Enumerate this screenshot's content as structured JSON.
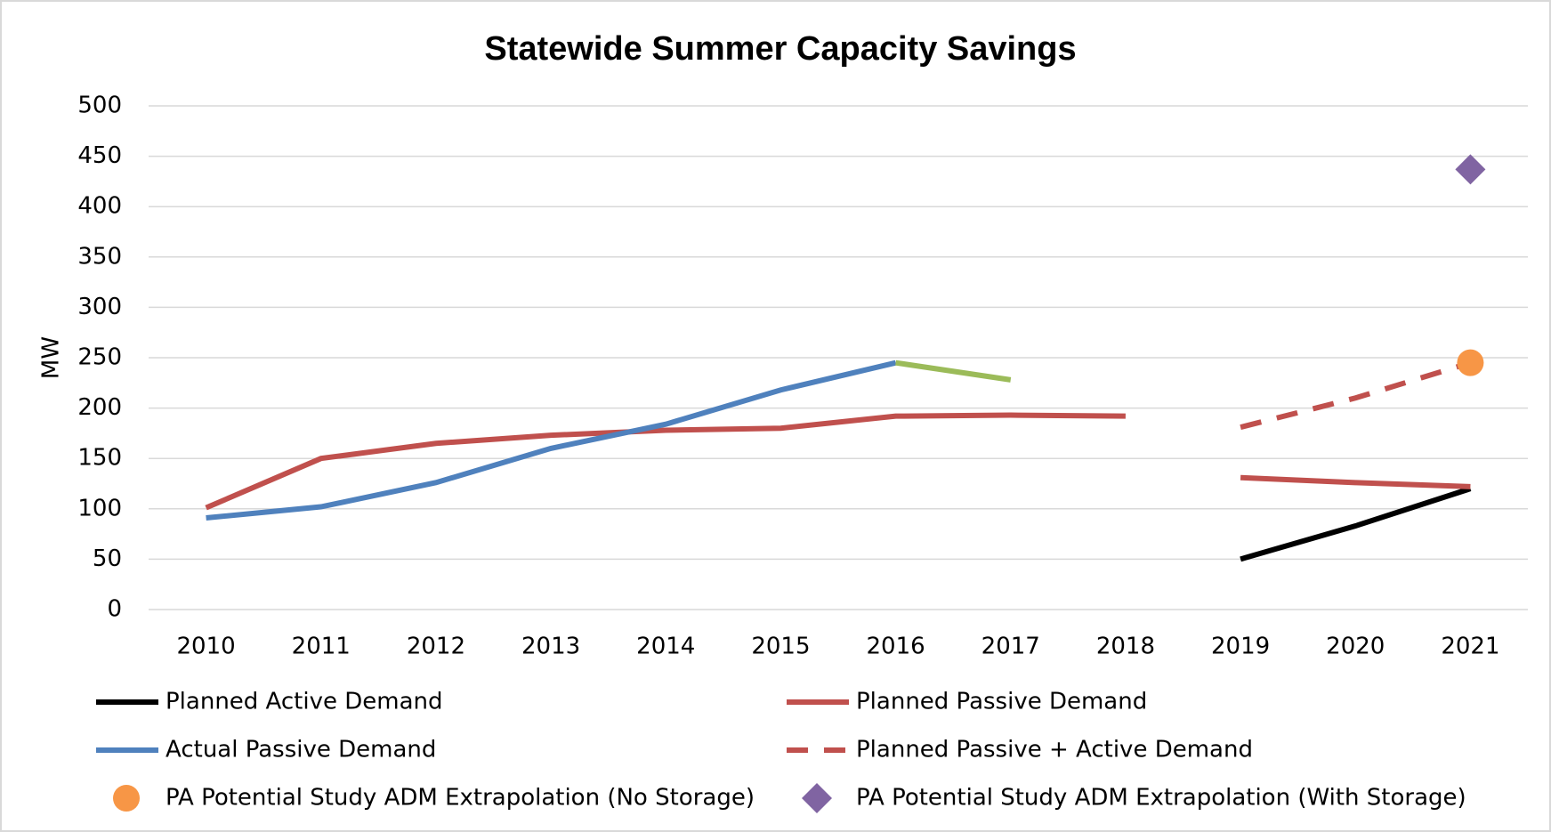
{
  "chart_data": {
    "type": "line",
    "title": "Statewide Summer Capacity Savings",
    "y_label": "MW",
    "categories": [
      "2010",
      "2011",
      "2012",
      "2013",
      "2014",
      "2015",
      "2016",
      "2017",
      "2018",
      "2019",
      "2020",
      "2021"
    ],
    "ylim": [
      0,
      500
    ],
    "yticks": [
      0,
      50,
      100,
      150,
      200,
      250,
      300,
      350,
      400,
      450,
      500
    ],
    "grid": true,
    "legend": "bottom",
    "series": [
      {
        "name": "Planned Active Demand",
        "color": "#000000",
        "values": [
          null,
          null,
          null,
          null,
          null,
          null,
          null,
          null,
          null,
          50,
          83,
          120
        ]
      },
      {
        "name": "Planned Passive Demand",
        "color": "#c0504d",
        "values": [
          101,
          150,
          165,
          173,
          178,
          180,
          192,
          193,
          192,
          null,
          null,
          null
        ]
      },
      {
        "name": "Actual Passive Demand",
        "color": "#4f81bd",
        "values": [
          91,
          102,
          126,
          160,
          184,
          218,
          245,
          null,
          null,
          null,
          null,
          null
        ]
      },
      {
        "name": "Planned Passive + Active Demand",
        "color": "#c0504d",
        "dash": true,
        "values": [
          null,
          null,
          null,
          null,
          null,
          null,
          null,
          null,
          null,
          181,
          210,
          245
        ]
      },
      {
        "name": "PA Potential Study ADM Extrapolation (No Storage)",
        "color": "#f79646",
        "marker": "circle",
        "values": [
          null,
          null,
          null,
          null,
          null,
          null,
          null,
          null,
          null,
          null,
          null,
          245
        ]
      },
      {
        "name": "PA Potential Study ADM Extrapolation (With Storage)",
        "color": "#8064a2",
        "marker": "diamond",
        "values": [
          null,
          null,
          null,
          null,
          null,
          null,
          null,
          null,
          null,
          null,
          null,
          437
        ]
      },
      {
        "color": "#c0504d",
        "values": [
          null,
          null,
          null,
          null,
          null,
          null,
          null,
          null,
          null,
          131,
          126,
          122
        ]
      },
      {
        "color": "#9bbb59",
        "values": [
          null,
          null,
          null,
          null,
          null,
          null,
          245,
          228,
          null,
          null,
          null,
          null
        ]
      }
    ]
  }
}
